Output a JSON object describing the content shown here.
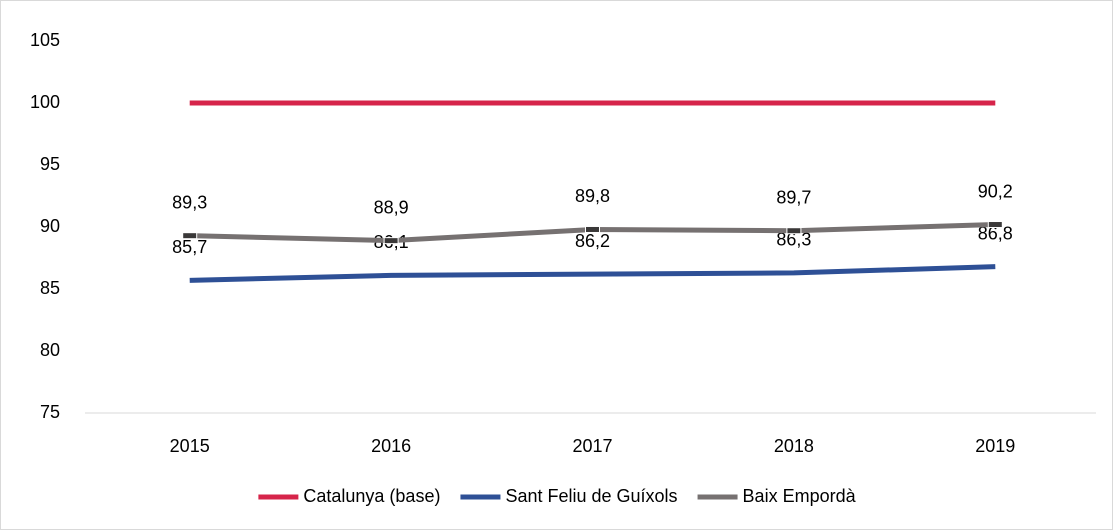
{
  "chart_data": {
    "type": "line",
    "categories": [
      "2015",
      "2016",
      "2017",
      "2018",
      "2019"
    ],
    "series": [
      {
        "name": "Catalunya (base)",
        "color": "#d6244a",
        "values": [
          100,
          100,
          100,
          100,
          100
        ]
      },
      {
        "name": "Sant Feliu de Guíxols",
        "color": "#2e5096",
        "values": [
          85.7,
          86.1,
          86.2,
          86.3,
          86.8
        ],
        "value_labels": [
          "85,7",
          "86,1",
          "86,2",
          "86,3",
          "86,8"
        ]
      },
      {
        "name": "Baix Empordà",
        "color": "#767171",
        "values": [
          89.3,
          88.9,
          89.8,
          89.7,
          90.2
        ],
        "value_labels": [
          "89,3",
          "88,9",
          "89,8",
          "89,7",
          "90,2"
        ],
        "markers": true
      }
    ],
    "ylim": [
      75,
      105
    ],
    "yticks": [
      75,
      80,
      85,
      90,
      95,
      100,
      105
    ],
    "grid": false,
    "legend": "bottom"
  }
}
